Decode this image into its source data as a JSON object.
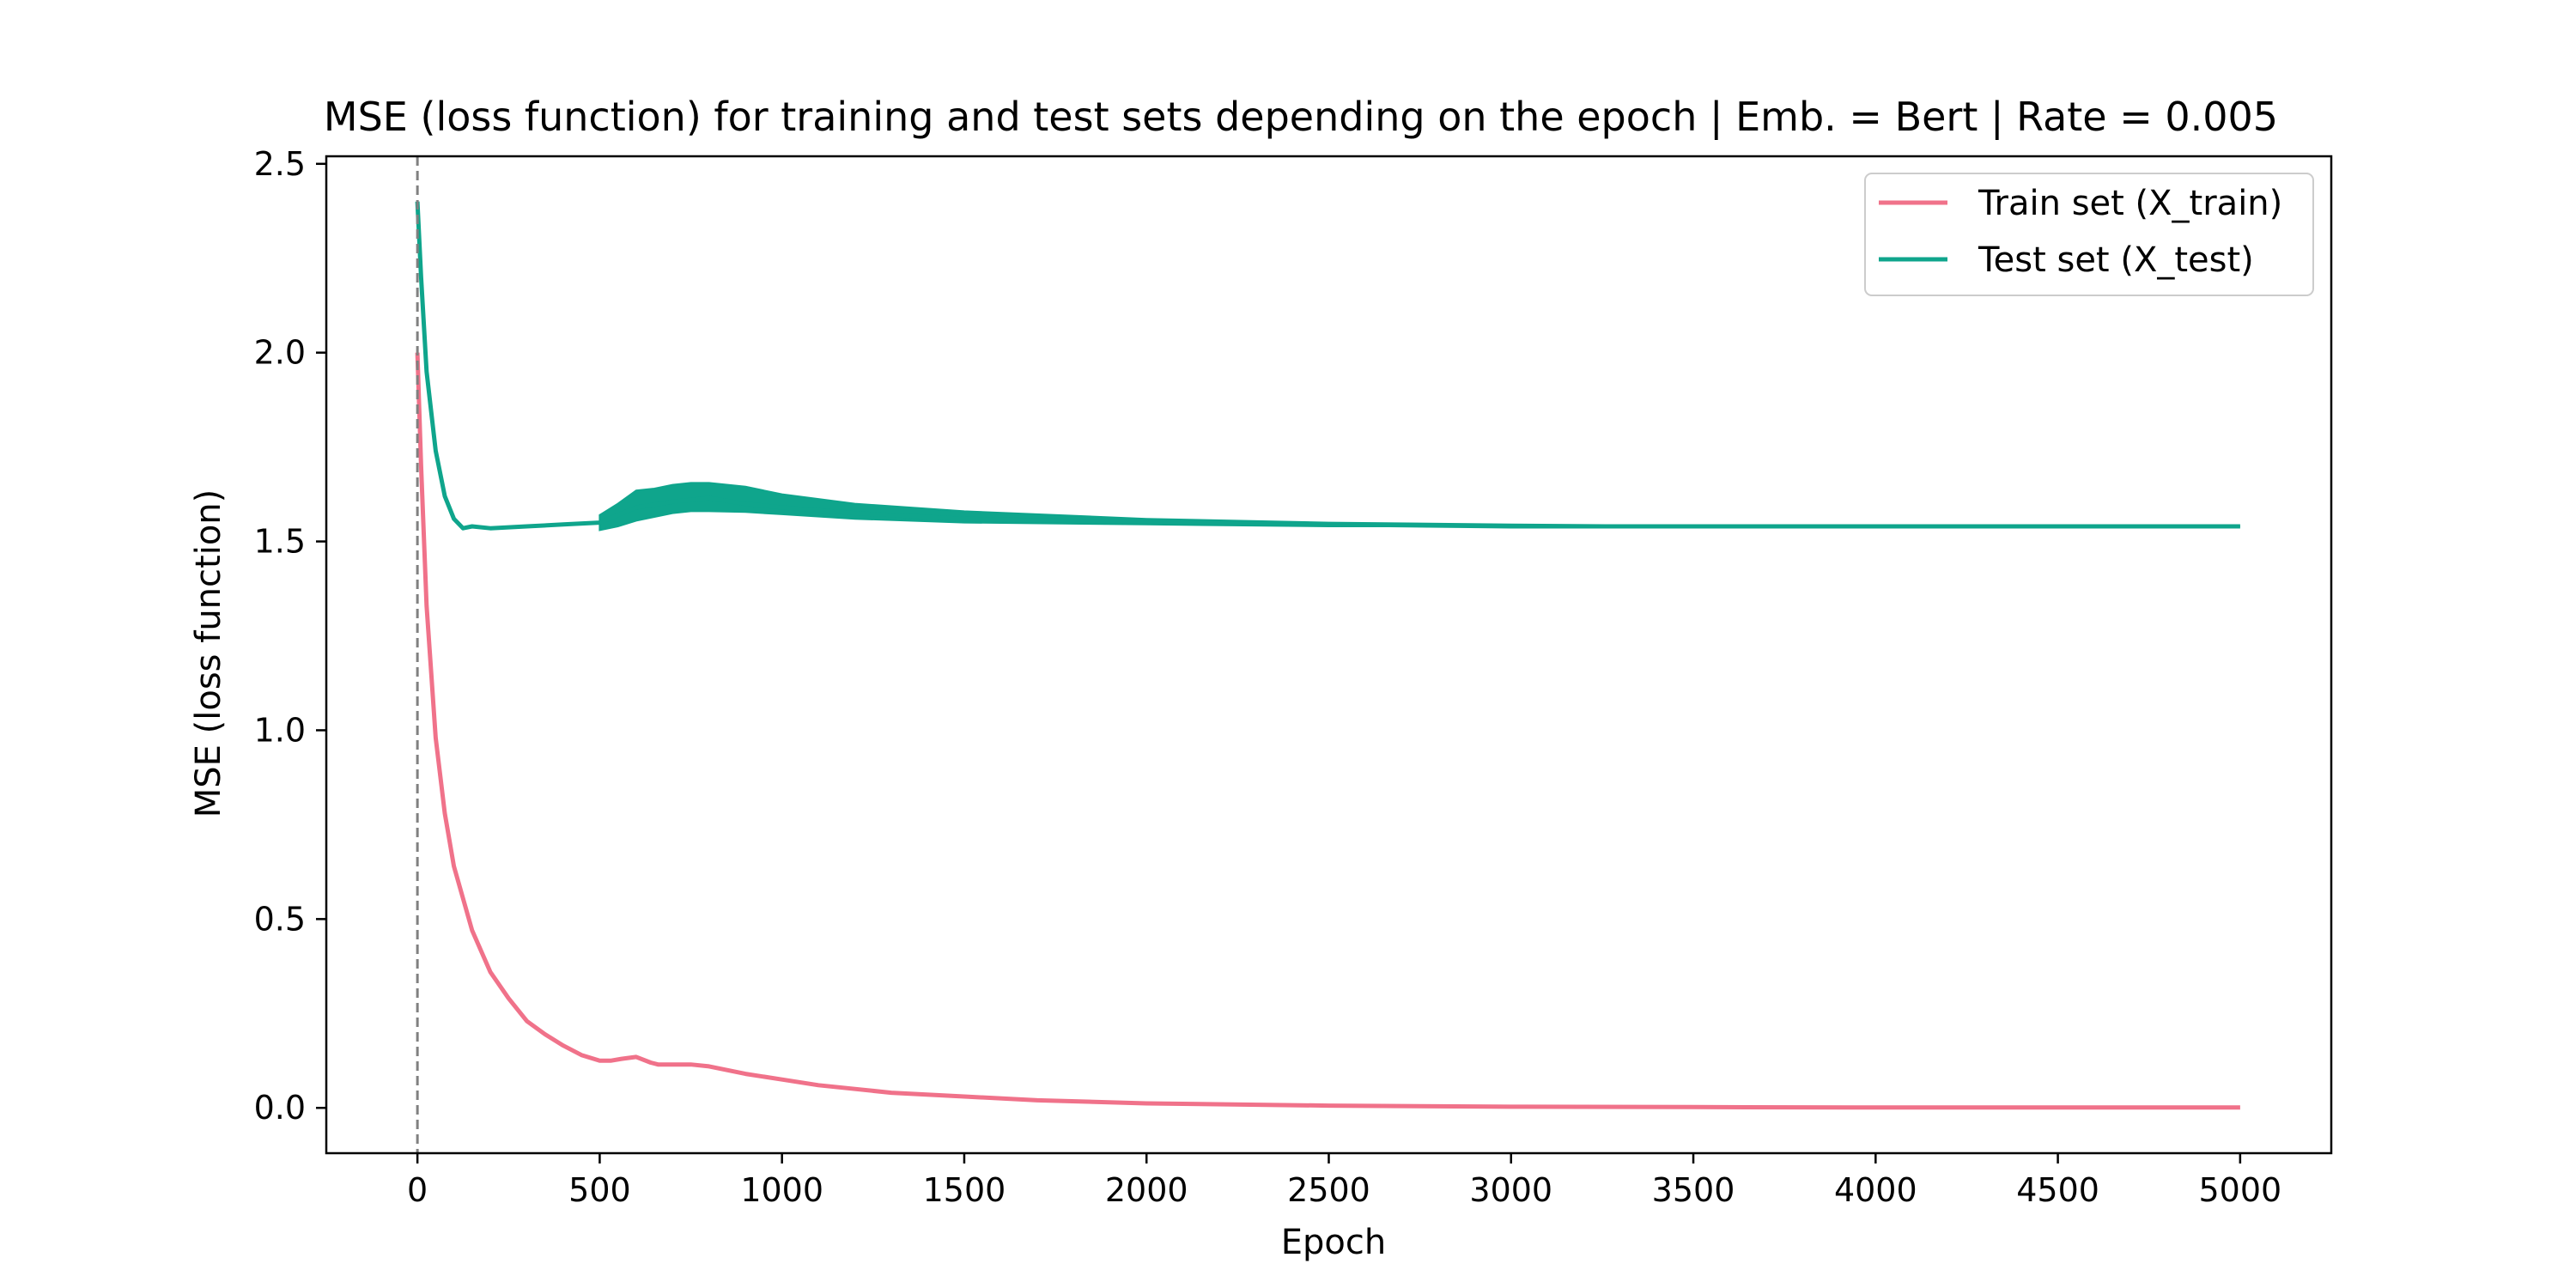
{
  "chart_data": {
    "type": "line",
    "title": "MSE (loss function) for training and test sets depending on the epoch | Emb. = Bert | Rate = 0.005",
    "xlabel": "Epoch",
    "ylabel": "MSE (loss function)",
    "xlim": [
      -250,
      5250
    ],
    "ylim": [
      -0.12,
      2.52
    ],
    "xticks": [
      0,
      500,
      1000,
      1500,
      2000,
      2500,
      3000,
      3500,
      4000,
      4500,
      5000
    ],
    "yticks": [
      0.0,
      0.5,
      1.0,
      1.5,
      2.0,
      2.5
    ],
    "xtick_labels": [
      "0",
      "500",
      "1000",
      "1500",
      "2000",
      "2500",
      "3000",
      "3500",
      "4000",
      "4500",
      "5000"
    ],
    "ytick_labels": [
      "0.0",
      "0.5",
      "1.0",
      "1.5",
      "2.0",
      "2.5"
    ],
    "grid": false,
    "legend_position": "top-right",
    "vline": {
      "x": 0,
      "style": "dashed",
      "color": "#808080"
    },
    "series": [
      {
        "name": "Train set (X_train)",
        "color": "#F0728A",
        "x": [
          0,
          10,
          25,
          50,
          75,
          100,
          150,
          200,
          250,
          300,
          350,
          400,
          450,
          500,
          530,
          560,
          600,
          640,
          660,
          700,
          750,
          800,
          900,
          1000,
          1100,
          1200,
          1300,
          1500,
          1700,
          2000,
          2500,
          3000,
          3500,
          4000,
          4500,
          5000
        ],
        "y": [
          2.0,
          1.7,
          1.33,
          0.98,
          0.78,
          0.64,
          0.47,
          0.36,
          0.29,
          0.23,
          0.195,
          0.165,
          0.14,
          0.125,
          0.125,
          0.13,
          0.135,
          0.12,
          0.115,
          0.115,
          0.115,
          0.11,
          0.09,
          0.075,
          0.06,
          0.05,
          0.04,
          0.03,
          0.02,
          0.012,
          0.006,
          0.003,
          0.002,
          0.001,
          0.001,
          0.001
        ]
      },
      {
        "name": "Test set (X_test)",
        "color": "#0FA58C",
        "x": [
          0,
          10,
          25,
          50,
          75,
          100,
          125,
          150,
          200,
          300,
          400,
          500,
          550,
          600,
          700,
          800,
          900,
          1000,
          1200,
          1500,
          2000,
          2500,
          3000,
          3500,
          4000,
          5000
        ],
        "y": [
          2.4,
          2.2,
          1.95,
          1.74,
          1.62,
          1.56,
          1.535,
          1.54,
          1.535,
          1.54,
          1.545,
          1.55,
          1.57,
          1.59,
          1.605,
          1.615,
          1.6,
          1.59,
          1.575,
          1.56,
          1.55,
          1.545,
          1.54,
          1.54,
          1.54,
          1.54
        ],
        "band_x": [
          500,
          550,
          600,
          650,
          700,
          750,
          800,
          900,
          1000,
          1200,
          1500,
          2000,
          2500,
          3000,
          3500,
          4000,
          5000
        ],
        "band_low": [
          1.53,
          1.54,
          1.555,
          1.565,
          1.575,
          1.58,
          1.58,
          1.578,
          1.572,
          1.56,
          1.55,
          1.545,
          1.54,
          1.54,
          1.54,
          1.54,
          1.54
        ],
        "band_high": [
          1.57,
          1.6,
          1.635,
          1.64,
          1.65,
          1.655,
          1.655,
          1.645,
          1.625,
          1.6,
          1.58,
          1.56,
          1.55,
          1.545,
          1.542,
          1.54,
          1.54
        ]
      }
    ]
  }
}
